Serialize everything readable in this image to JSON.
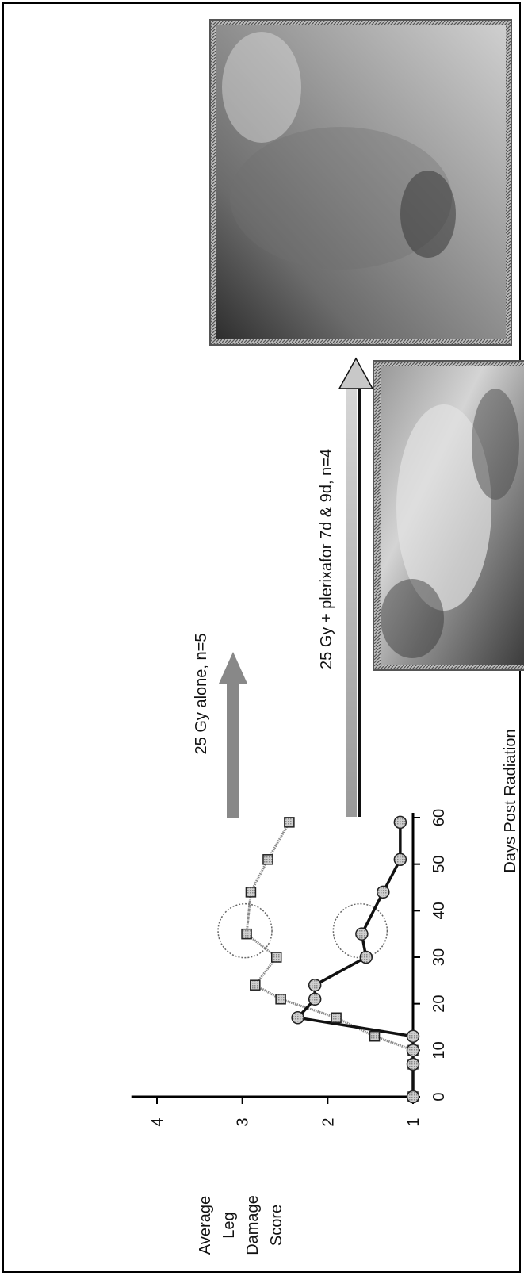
{
  "chart_data": {
    "type": "line",
    "orientation": "rotated 90° counter-clockwise (x axis runs bottom-to-top)",
    "xlabel": "Days Post Radiation",
    "ylabel_lines": [
      "Average",
      "Leg",
      "Damage",
      "Score"
    ],
    "xlim": [
      0,
      60
    ],
    "ylim": [
      1,
      4.3
    ],
    "x_ticks": [
      "0",
      "10",
      "20",
      "30",
      "40",
      "50",
      "60"
    ],
    "y_ticks": [
      "1",
      "2",
      "3",
      "4"
    ],
    "series": [
      {
        "name": "25 Gy alone, n=5",
        "marker": "square",
        "color": "#777777",
        "x": [
          0,
          7,
          10,
          13,
          17,
          21,
          24,
          30,
          35,
          44,
          51,
          59
        ],
        "y": [
          1.0,
          1.0,
          1.0,
          1.45,
          1.9,
          2.55,
          2.85,
          2.6,
          2.95,
          2.9,
          2.7,
          2.45
        ]
      },
      {
        "name": "25 Gy + plerixafor 7d & 9d, n=4",
        "marker": "circle",
        "color": "#111111",
        "x": [
          0,
          7,
          10,
          13,
          17,
          21,
          24,
          30,
          35,
          44,
          51,
          59
        ],
        "y": [
          1.0,
          1.0,
          1.0,
          1.0,
          2.35,
          2.15,
          2.15,
          1.55,
          1.6,
          1.35,
          1.15,
          1.15
        ]
      }
    ],
    "highlight_day": 35
  }
}
